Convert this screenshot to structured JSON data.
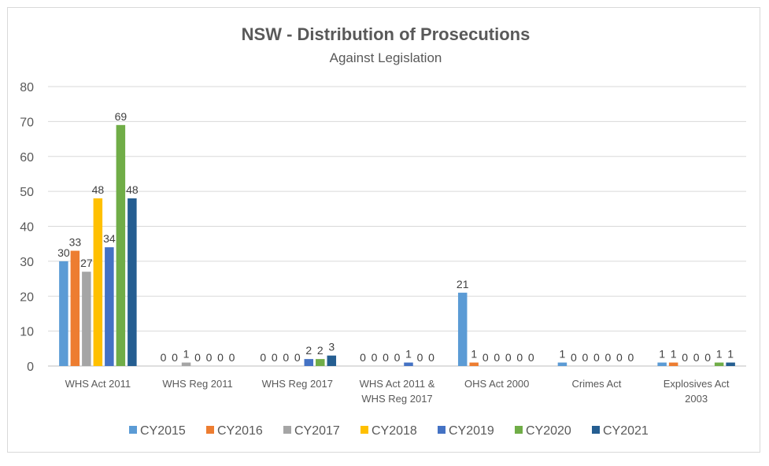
{
  "chart_data": {
    "type": "bar",
    "title": "NSW - Distribution of Prosecutions",
    "subtitle": "Against Legislation",
    "xlabel": "",
    "ylabel": "",
    "ylim": [
      0,
      80
    ],
    "yticks": [
      0,
      10,
      20,
      30,
      40,
      50,
      60,
      70,
      80
    ],
    "grid": true,
    "legend": "bottom",
    "categories": [
      [
        "WHS Act 2011"
      ],
      [
        "WHS Reg 2011"
      ],
      [
        "WHS Reg 2017"
      ],
      [
        "WHS Act 2011 &",
        "WHS Reg 2017"
      ],
      [
        "OHS Act 2000"
      ],
      [
        "Crimes Act"
      ],
      [
        "Explosives Act",
        "2003"
      ]
    ],
    "series": [
      {
        "name": "CY2015",
        "color": "#5b9bd5",
        "values": [
          30,
          0,
          0,
          0,
          21,
          1,
          1
        ]
      },
      {
        "name": "CY2016",
        "color": "#ed7d31",
        "values": [
          33,
          0,
          0,
          0,
          1,
          0,
          1
        ]
      },
      {
        "name": "CY2017",
        "color": "#a5a5a5",
        "values": [
          27,
          1,
          0,
          0,
          0,
          0,
          0
        ]
      },
      {
        "name": "CY2018",
        "color": "#ffc000",
        "values": [
          48,
          0,
          0,
          0,
          0,
          0,
          0
        ]
      },
      {
        "name": "CY2019",
        "color": "#4472c4",
        "values": [
          34,
          0,
          2,
          1,
          0,
          0,
          0
        ]
      },
      {
        "name": "CY2020",
        "color": "#70ad47",
        "values": [
          69,
          0,
          2,
          0,
          0,
          0,
          1
        ]
      },
      {
        "name": "CY2021",
        "color": "#255e91",
        "values": [
          48,
          0,
          3,
          0,
          0,
          0,
          1
        ]
      }
    ]
  }
}
